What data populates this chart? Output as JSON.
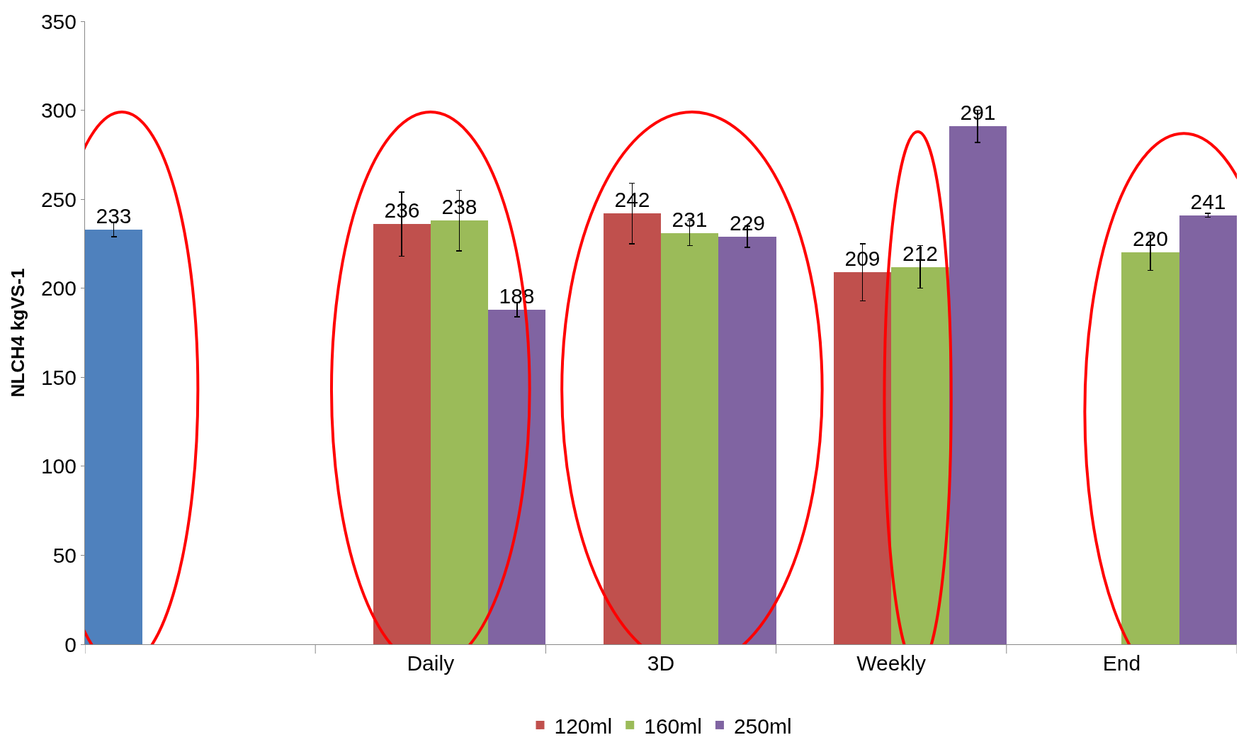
{
  "chart_data": {
    "type": "bar",
    "ylabel": "NLCH4 kgVS-1",
    "categories": [
      null,
      "Daily",
      "3D",
      "Weekly",
      "End"
    ],
    "series": [
      {
        "color": "#4f81bd",
        "values": [
          233,
          null,
          null,
          null,
          null
        ],
        "errors": [
          4,
          null,
          null,
          null,
          null
        ]
      },
      {
        "name": "120ml",
        "color": "#c0504d",
        "values": [
          null,
          236,
          242,
          209,
          null
        ],
        "errors": [
          null,
          18,
          17,
          16,
          null
        ]
      },
      {
        "name": "160ml",
        "color": "#9bbb59",
        "values": [
          null,
          238,
          231,
          212,
          220
        ],
        "errors": [
          null,
          17,
          7,
          12,
          10
        ]
      },
      {
        "name": "250ml",
        "color": "#8064a2",
        "values": [
          null,
          188,
          229,
          291,
          241
        ],
        "errors": [
          null,
          4,
          6,
          9,
          1
        ]
      }
    ],
    "ylim": [
      0,
      350
    ],
    "yticks": [
      0,
      50,
      100,
      150,
      200,
      250,
      300,
      350
    ],
    "grid": false,
    "legend": "bottom",
    "data_labels": true
  }
}
